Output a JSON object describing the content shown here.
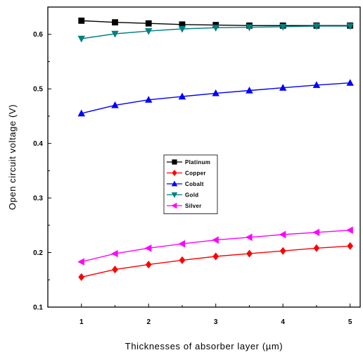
{
  "chart_data": {
    "type": "line",
    "xlabel": "Thicknesses of absorber layer (µm)",
    "ylabel": "Open circuit voltage (V)",
    "xlim": [
      0.5,
      5.15
    ],
    "ylim": [
      0.1,
      0.65
    ],
    "xticks": [
      1,
      2,
      3,
      4,
      5
    ],
    "yticks": [
      0.1,
      0.2,
      0.3,
      0.4,
      0.5,
      0.6
    ],
    "x": [
      1,
      1.5,
      2,
      2.5,
      3,
      3.5,
      4,
      4.5,
      5
    ],
    "legend_position": "center",
    "grid": false,
    "series": [
      {
        "name": "Platinum",
        "color": "#000000",
        "marker": "square",
        "values": [
          0.625,
          0.622,
          0.62,
          0.618,
          0.617,
          0.616,
          0.616,
          0.616,
          0.616
        ]
      },
      {
        "name": "Copper",
        "color": "#ff0000",
        "marker": "diamond",
        "values": [
          0.155,
          0.169,
          0.178,
          0.186,
          0.193,
          0.198,
          0.203,
          0.208,
          0.212
        ]
      },
      {
        "name": "Cobalt",
        "color": "#0000ff",
        "marker": "triangle-up",
        "values": [
          0.455,
          0.47,
          0.48,
          0.486,
          0.492,
          0.497,
          0.502,
          0.507,
          0.511
        ]
      },
      {
        "name": "Gold",
        "color": "#008080",
        "marker": "triangle-down",
        "values": [
          0.592,
          0.601,
          0.606,
          0.61,
          0.612,
          0.613,
          0.614,
          0.615,
          0.615
        ]
      },
      {
        "name": "Silver",
        "color": "#ff00ff",
        "marker": "triangle-left",
        "values": [
          0.183,
          0.198,
          0.208,
          0.216,
          0.223,
          0.228,
          0.233,
          0.237,
          0.241
        ]
      }
    ]
  }
}
